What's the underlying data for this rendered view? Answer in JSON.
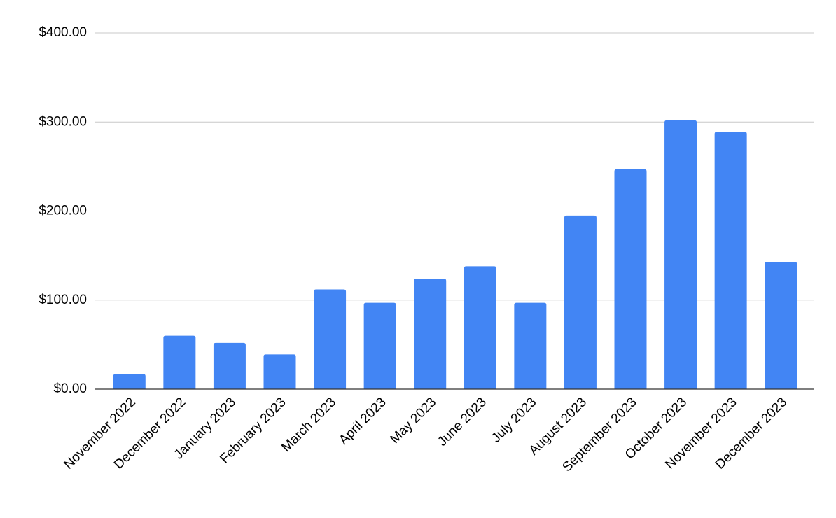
{
  "chart_data": {
    "type": "bar",
    "categories": [
      "November 2022",
      "December 2022",
      "January 2023",
      "February 2023",
      "March 2023",
      "April 2023",
      "May 2023",
      "June 2023",
      "July 2023",
      "August 2023",
      "September 2023",
      "October 2023",
      "November 2023",
      "December 2023"
    ],
    "values": [
      17,
      60,
      52,
      39,
      112,
      97,
      124,
      138,
      97,
      195,
      247,
      302,
      289,
      143
    ],
    "color": "#4285f4",
    "ylim": [
      0,
      400
    ],
    "yticks": [
      {
        "value": 0,
        "label": "$0.00"
      },
      {
        "value": 100,
        "label": "$100.00"
      },
      {
        "value": 200,
        "label": "$200.00"
      },
      {
        "value": 300,
        "label": "$300.00"
      },
      {
        "value": 400,
        "label": "$400.00"
      }
    ],
    "grid": true
  }
}
